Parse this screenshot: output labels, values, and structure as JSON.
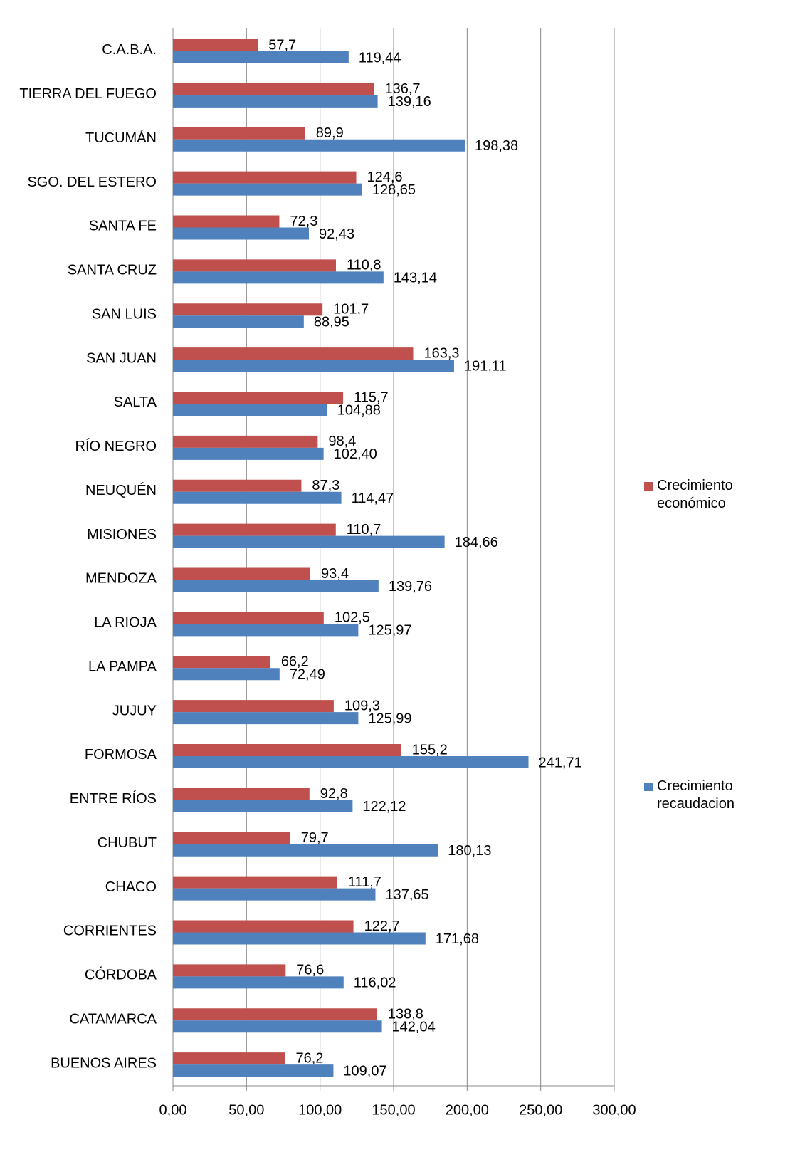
{
  "chart_data": {
    "type": "bar",
    "orientation": "horizontal",
    "categories": [
      "C.A.B.A.",
      "TIERRA DEL FUEGO",
      "TUCUMÁN",
      "SGO. DEL ESTERO",
      "SANTA FE",
      "SANTA CRUZ",
      "SAN LUIS",
      "SAN JUAN",
      "SALTA",
      "RÍO NEGRO",
      "NEUQUÉN",
      "MISIONES",
      "MENDOZA",
      "LA RIOJA",
      "LA PAMPA",
      "JUJUY",
      "FORMOSA",
      "ENTRE RÍOS",
      "CHUBUT",
      "CHACO",
      "CORRIENTES",
      "CÓRDOBA",
      "CATAMARCA",
      "BUENOS AIRES"
    ],
    "series": [
      {
        "name": "Crecimiento económico",
        "color": "#c0504d",
        "values": [
          57.7,
          136.7,
          89.9,
          124.6,
          72.3,
          110.8,
          101.7,
          163.3,
          115.7,
          98.4,
          87.3,
          110.7,
          93.4,
          102.5,
          66.2,
          109.3,
          155.2,
          92.8,
          79.7,
          111.7,
          122.7,
          76.6,
          138.8,
          76.2
        ],
        "value_labels": [
          "57,7",
          "136,7",
          "89,9",
          "124,6",
          "72,3",
          "110,8",
          "101,7",
          "163,3",
          "115,7",
          "98,4",
          "87,3",
          "110,7",
          "93,4",
          "102,5",
          "66,2",
          "109,3",
          "155,2",
          "92,8",
          "79,7",
          "111,7",
          "122,7",
          "76,6",
          "138,8",
          "76,2"
        ]
      },
      {
        "name": "Crecimiento recaudacion",
        "color": "#4f81bd",
        "values": [
          119.44,
          139.16,
          198.38,
          128.65,
          92.43,
          143.14,
          88.95,
          191.11,
          104.88,
          102.4,
          114.47,
          184.66,
          139.76,
          125.97,
          72.49,
          125.99,
          241.71,
          122.12,
          180.13,
          137.65,
          171.68,
          116.02,
          142.04,
          109.07
        ],
        "value_labels": [
          "119,44",
          "139,16",
          "198,38",
          "128,65",
          "92,43",
          "143,14",
          "88,95",
          "191,11",
          "104,88",
          "102,40",
          "114,47",
          "184,66",
          "139,76",
          "125,97",
          "72,49",
          "125,99",
          "241,71",
          "122,12",
          "180,13",
          "137,65",
          "171,68",
          "116,02",
          "142,04",
          "109,07"
        ]
      }
    ],
    "xlim": [
      0,
      300
    ],
    "xticks": [
      {
        "value": 0,
        "label": "0,00"
      },
      {
        "value": 50,
        "label": "50,00"
      },
      {
        "value": 100,
        "label": "100,00"
      },
      {
        "value": 150,
        "label": "150,00"
      },
      {
        "value": 200,
        "label": "200,00"
      },
      {
        "value": 250,
        "label": "250,00"
      },
      {
        "value": 300,
        "label": "300,00"
      }
    ],
    "grid": true,
    "legend": "right"
  }
}
